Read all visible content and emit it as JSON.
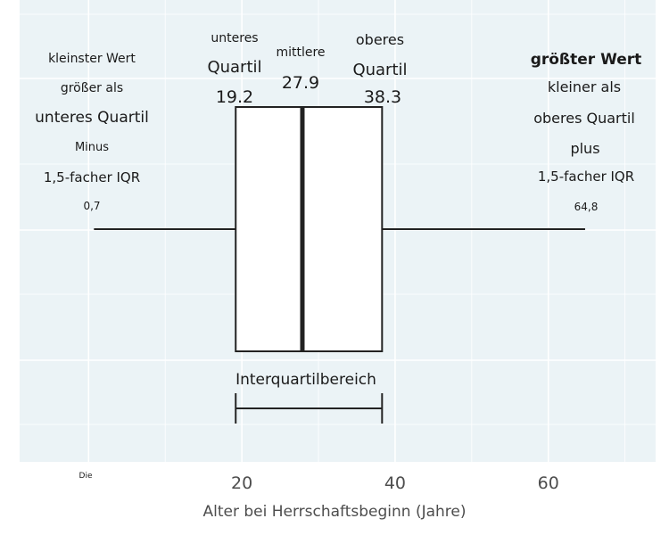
{
  "chart_data": {
    "type": "boxplot",
    "xlabel": "Alter bei Herrschaftsbeginn (Jahre)",
    "xlim": [
      -9,
      74
    ],
    "x_ticks": [
      {
        "value": 20,
        "label": "20"
      },
      {
        "value": 40,
        "label": "40"
      },
      {
        "value": 60,
        "label": "60"
      }
    ],
    "grid": true,
    "box": {
      "whisker_low": 0.7,
      "q1": 19.2,
      "median": 27.9,
      "q3": 38.3,
      "whisker_high": 64.8
    },
    "annotations": {
      "whisker_low_lines": [
        "kleinster Wert",
        "größer als",
        "unteres Quartil",
        "Minus",
        "1,5-facher IQR",
        "0,7"
      ],
      "q1_lines": [
        "unteres",
        "Quartil",
        "19.2"
      ],
      "median_lines": [
        "mittlere",
        "27.9"
      ],
      "q3_lines": [
        "oberes",
        "Quartil",
        "38.3"
      ],
      "whisker_high_lines": [
        "größter Wert",
        "kleiner als",
        "oberes Quartil",
        "plus",
        "1,5-facher IQR",
        "64,8"
      ],
      "iqr_label": "Interquartilbereich",
      "corner_label": "Die"
    }
  }
}
